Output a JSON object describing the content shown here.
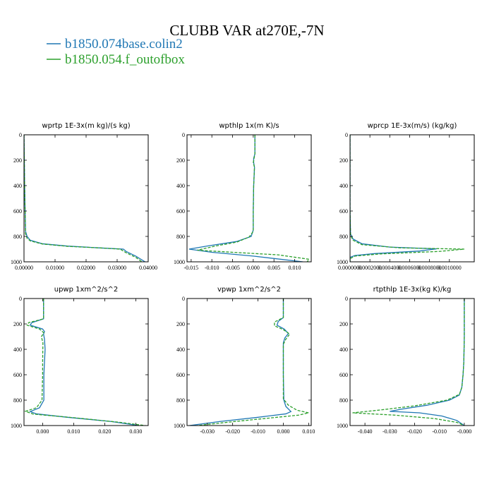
{
  "figure": {
    "title": "CLUBB VAR at270E,-7N"
  },
  "legend": [
    {
      "name": "b1850.074base.colin2",
      "color": "#1f77b4",
      "dash": "solid"
    },
    {
      "name": "b1850.054.f_outofbox",
      "color": "#2ca02c",
      "dash": "dashed"
    }
  ],
  "chart_data": [
    {
      "type": "line",
      "title": "wprtp  1E-3x(m kg)/(s kg)",
      "xlim": [
        0.0,
        0.04
      ],
      "ylim": [
        1000,
        0
      ],
      "xticks": [
        0.0,
        0.01,
        0.02,
        0.03,
        0.04
      ],
      "xtick_labels": [
        "0.00000",
        "0.01000",
        "0.02000",
        "0.03000",
        "0.04000"
      ],
      "yticks": [
        0,
        200,
        400,
        600,
        800,
        1000
      ],
      "ytick_labels": [
        "0",
        "200",
        "400",
        "600",
        "800",
        "1000"
      ],
      "series": [
        {
          "name": "b1850.074base.colin2",
          "points": [
            [
              0.0,
              0
            ],
            [
              0.0002,
              400
            ],
            [
              0.0005,
              760
            ],
            [
              0.001,
              800
            ],
            [
              0.002,
              830
            ],
            [
              0.006,
              858
            ],
            [
              0.014,
              876
            ],
            [
              0.024,
              890
            ],
            [
              0.032,
              900
            ],
            [
              0.033,
              920
            ],
            [
              0.036,
              955
            ],
            [
              0.039,
              1000
            ]
          ]
        },
        {
          "name": "b1850.054.f_outofbox",
          "points": [
            [
              0.0,
              0
            ],
            [
              0.0002,
              400
            ],
            [
              0.0005,
              780
            ],
            [
              0.001,
              815
            ],
            [
              0.002,
              835
            ],
            [
              0.006,
              860
            ],
            [
              0.014,
              878
            ],
            [
              0.024,
              890
            ],
            [
              0.031,
              900
            ],
            [
              0.033,
              930
            ],
            [
              0.036,
              965
            ],
            [
              0.038,
              1000
            ]
          ]
        }
      ]
    },
    {
      "type": "line",
      "title": "wpthlp  1x(m K)/s",
      "xlim": [
        -0.016,
        0.014
      ],
      "ylim": [
        1000,
        0
      ],
      "xticks": [
        -0.015,
        -0.01,
        -0.005,
        0.0,
        0.005,
        0.01
      ],
      "xtick_labels": [
        "-0.015",
        "-0.010",
        "-0.005",
        "0.000",
        "0.005",
        "0.010"
      ],
      "yticks": [
        0,
        200,
        400,
        600,
        800,
        1000
      ],
      "ytick_labels": [
        "0",
        "200",
        "400",
        "600",
        "800",
        "1000"
      ],
      "series": [
        {
          "name": "b1850.074base.colin2",
          "points": [
            [
              0.0004,
              0
            ],
            [
              0.0004,
              150
            ],
            [
              0.0001,
              185
            ],
            [
              0.0001,
              220
            ],
            [
              0.0003,
              255
            ],
            [
              0.0001,
              400
            ],
            [
              0.0,
              600
            ],
            [
              0.0,
              750
            ],
            [
              -0.0005,
              800
            ],
            [
              -0.004,
              840
            ],
            [
              -0.011,
              875
            ],
            [
              -0.0155,
              900
            ],
            [
              -0.01,
              925
            ],
            [
              0.0,
              955
            ],
            [
              0.012,
              1000
            ]
          ]
        },
        {
          "name": "b1850.054.f_outofbox",
          "points": [
            [
              0.0004,
              0
            ],
            [
              0.0004,
              150
            ],
            [
              0.0002,
              185
            ],
            [
              0.0,
              220
            ],
            [
              0.0003,
              255
            ],
            [
              0.0001,
              400
            ],
            [
              0.0,
              600
            ],
            [
              0.0,
              760
            ],
            [
              -0.001,
              805
            ],
            [
              -0.004,
              845
            ],
            [
              -0.009,
              875
            ],
            [
              -0.0135,
              908
            ],
            [
              -0.005,
              925
            ],
            [
              0.006,
              945
            ],
            [
              0.0135,
              980
            ],
            [
              0.013,
              1000
            ]
          ]
        }
      ]
    },
    {
      "type": "line",
      "title": "wprcp  1E-3x(m/s) (kg/kg)",
      "xlim": [
        0.0,
        0.00125
      ],
      "ylim": [
        1000,
        0
      ],
      "xticks": [
        0.0,
        0.0002,
        0.0004,
        0.0006,
        0.0008,
        0.001
      ],
      "xtick_labels": [
        "0.0000000",
        "0.0002000",
        "0.0004000",
        "0.0006000",
        "0.0008000",
        "0.0010000"
      ],
      "yticks": [
        0,
        200,
        400,
        600,
        800,
        1000
      ],
      "ytick_labels": [
        "0",
        "200",
        "400",
        "600",
        "800",
        "1000"
      ],
      "series": [
        {
          "name": "b1850.074base.colin2",
          "points": [
            [
              0.0,
              0
            ],
            [
              0.0,
              600
            ],
            [
              5e-06,
              780
            ],
            [
              3e-05,
              820
            ],
            [
              0.00012,
              858
            ],
            [
              0.0004,
              884
            ],
            [
              0.00087,
              898
            ],
            [
              0.0007,
              915
            ],
            [
              0.00025,
              935
            ],
            [
              5e-05,
              950
            ],
            [
              0.0,
              965
            ],
            [
              0.0,
              1000
            ]
          ]
        },
        {
          "name": "b1850.054.f_outofbox",
          "points": [
            [
              0.0,
              0
            ],
            [
              0.0,
              600
            ],
            [
              5e-06,
              790
            ],
            [
              3e-05,
              830
            ],
            [
              0.00012,
              865
            ],
            [
              0.0005,
              890
            ],
            [
              0.00115,
              900
            ],
            [
              0.0009,
              918
            ],
            [
              0.0003,
              938
            ],
            [
              5e-05,
              955
            ],
            [
              0.0,
              975
            ],
            [
              0.0,
              1000
            ]
          ]
        }
      ]
    },
    {
      "type": "line",
      "title": "upwp  1xm^2/s^2",
      "xlim": [
        -0.006,
        0.034
      ],
      "ylim": [
        1000,
        0
      ],
      "xticks": [
        0.0,
        0.01,
        0.02,
        0.03
      ],
      "xtick_labels": [
        "0.000",
        "0.010",
        "0.020",
        "0.030"
      ],
      "yticks": [
        0,
        200,
        400,
        600,
        800,
        1000
      ],
      "ytick_labels": [
        "0",
        "200",
        "400",
        "600",
        "800",
        "1000"
      ],
      "series": [
        {
          "name": "b1850.074base.colin2",
          "points": [
            [
              0.0003,
              0
            ],
            [
              0.0003,
              160
            ],
            [
              -0.0035,
              190
            ],
            [
              -0.004,
              210
            ],
            [
              0.0,
              240
            ],
            [
              0.0006,
              260
            ],
            [
              0.0003,
              280
            ],
            [
              0.0006,
              320
            ],
            [
              0.0008,
              400
            ],
            [
              0.0006,
              500
            ],
            [
              0.0004,
              600
            ],
            [
              0.0004,
              800
            ],
            [
              -0.001,
              860
            ],
            [
              -0.004,
              890
            ],
            [
              -0.002,
              908
            ],
            [
              0.008,
              935
            ],
            [
              0.022,
              968
            ],
            [
              0.031,
              1000
            ]
          ]
        },
        {
          "name": "b1850.054.f_outofbox",
          "points": [
            [
              0.0003,
              0
            ],
            [
              0.0003,
              160
            ],
            [
              -0.0045,
              190
            ],
            [
              -0.005,
              210
            ],
            [
              -0.001,
              240
            ],
            [
              0.0004,
              270
            ],
            [
              -0.0004,
              300
            ],
            [
              0.0001,
              350
            ],
            [
              0.0,
              500
            ],
            [
              0.0,
              600
            ],
            [
              -0.0002,
              800
            ],
            [
              -0.002,
              860
            ],
            [
              -0.0055,
              888
            ],
            [
              -0.003,
              910
            ],
            [
              0.01,
              938
            ],
            [
              0.025,
              975
            ],
            [
              0.033,
              1000
            ]
          ]
        }
      ]
    },
    {
      "type": "line",
      "title": "vpwp  1xm^2/s^2",
      "xlim": [
        -0.038,
        0.011
      ],
      "ylim": [
        1000,
        0
      ],
      "xticks": [
        -0.03,
        -0.02,
        -0.01,
        0.0,
        0.01
      ],
      "xtick_labels": [
        "-0.030",
        "-0.020",
        "-0.010",
        "0.000",
        "0.010"
      ],
      "yticks": [
        0,
        200,
        400,
        600,
        800,
        1000
      ],
      "ytick_labels": [
        "0",
        "200",
        "400",
        "600",
        "800",
        "1000"
      ],
      "series": [
        {
          "name": "b1850.074base.colin2",
          "points": [
            [
              0.0,
              0
            ],
            [
              0.0,
              150
            ],
            [
              -0.002,
              180
            ],
            [
              -0.0025,
              210
            ],
            [
              0.0003,
              240
            ],
            [
              0.002,
              275
            ],
            [
              0.0006,
              310
            ],
            [
              0.0,
              350
            ],
            [
              0.0,
              600
            ],
            [
              0.0002,
              800
            ],
            [
              0.001,
              850
            ],
            [
              0.003,
              890
            ],
            [
              0.001,
              908
            ],
            [
              -0.01,
              935
            ],
            [
              -0.025,
              968
            ],
            [
              -0.037,
              1000
            ]
          ]
        },
        {
          "name": "b1850.054.f_outofbox",
          "points": [
            [
              0.0,
              0
            ],
            [
              0.0,
              150
            ],
            [
              -0.0035,
              185
            ],
            [
              -0.0035,
              215
            ],
            [
              0.0,
              245
            ],
            [
              0.0025,
              280
            ],
            [
              0.001,
              320
            ],
            [
              0.0,
              360
            ],
            [
              0.0,
              600
            ],
            [
              0.0,
              790
            ],
            [
              0.002,
              840
            ],
            [
              0.0055,
              880
            ],
            [
              0.01,
              900
            ],
            [
              0.006,
              918
            ],
            [
              -0.005,
              940
            ],
            [
              -0.02,
              970
            ],
            [
              -0.034,
              1000
            ]
          ]
        }
      ]
    },
    {
      "type": "line",
      "title": "rtpthlp  1E-3x(kg K)/kg",
      "xlim": [
        -0.046,
        0.004
      ],
      "ylim": [
        1000,
        0
      ],
      "xticks": [
        -0.04,
        -0.03,
        -0.02,
        -0.01,
        0.0
      ],
      "xtick_labels": [
        "-0.040",
        "-0.030",
        "-0.020",
        "-0.010",
        "-0.000"
      ],
      "yticks": [
        0,
        200,
        400,
        600,
        800,
        1000
      ],
      "ytick_labels": [
        "0",
        "200",
        "400",
        "600",
        "800",
        "1000"
      ],
      "series": [
        {
          "name": "b1850.074base.colin2",
          "points": [
            [
              0.0,
              0
            ],
            [
              0.0,
              300
            ],
            [
              -0.0002,
              500
            ],
            [
              -0.0005,
              600
            ],
            [
              -0.001,
              700
            ],
            [
              -0.002,
              760
            ],
            [
              -0.006,
              800
            ],
            [
              -0.015,
              840
            ],
            [
              -0.025,
              870
            ],
            [
              -0.03,
              888
            ],
            [
              -0.018,
              900
            ],
            [
              -0.009,
              925
            ],
            [
              -0.003,
              960
            ],
            [
              0.0,
              1000
            ]
          ]
        },
        {
          "name": "b1850.054.f_outofbox",
          "points": [
            [
              0.0,
              0
            ],
            [
              0.0,
              300
            ],
            [
              -0.0002,
              500
            ],
            [
              -0.0005,
              600
            ],
            [
              -0.001,
              700
            ],
            [
              -0.002,
              755
            ],
            [
              -0.007,
              800
            ],
            [
              -0.02,
              845
            ],
            [
              -0.034,
              878
            ],
            [
              -0.045,
              900
            ],
            [
              -0.028,
              918
            ],
            [
              -0.012,
              945
            ],
            [
              -0.003,
              975
            ],
            [
              0.0,
              1000
            ]
          ]
        }
      ]
    }
  ]
}
